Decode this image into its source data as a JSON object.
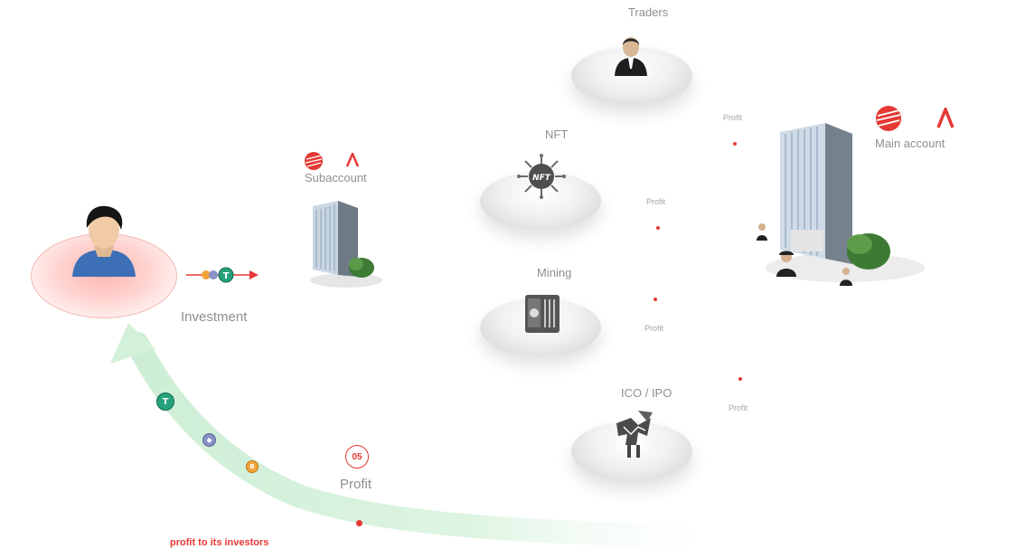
{
  "nodes": {
    "traders": "Traders",
    "nft": "NFT",
    "mining": "Mining",
    "ico": "ICO / IPO",
    "subaccount": "Subaccount",
    "main_account": "Main account",
    "investment": "Investment"
  },
  "profit_labels": [
    "Profit",
    "Profit",
    "Profit",
    "Profit"
  ],
  "step": {
    "number": "05",
    "label": "Profit"
  },
  "caption": "profit to its investors",
  "colors": {
    "accent_red": "#e53935",
    "arrow_green": "#d8f3dc",
    "tether_green": "#26a17b"
  },
  "icons": [
    "user-icon",
    "building-icon",
    "trader-icon",
    "nft-chip-icon",
    "mining-rig-icon",
    "ico-chart-icon",
    "brand-logo-icon",
    "lambda-logo-icon",
    "tether-coin-icon",
    "ethereum-coin-icon",
    "bitcoin-coin-icon"
  ]
}
